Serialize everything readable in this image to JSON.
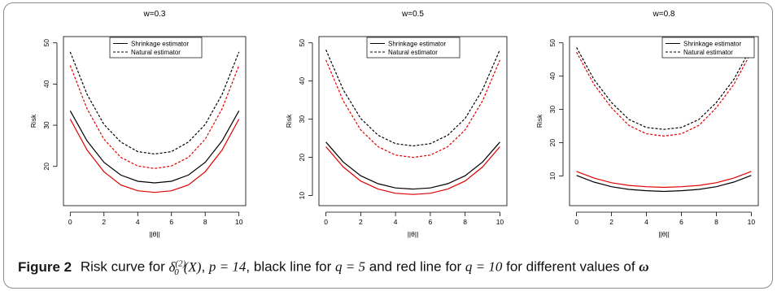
{
  "figure": {
    "caption_label": "Figure 2",
    "caption_text": {
      "risk_curve_for": "Risk curve for",
      "delta": "δ",
      "delta_sup": "(2)",
      "delta_sub": "0",
      "arg": "(X)",
      "p_part": "p = 14",
      "black_line_for": "black line for",
      "q_black": "q = 5",
      "red_line_for": "and red line for",
      "q_red": "q = 10",
      "tail": "for different values of",
      "omega": "ω"
    }
  },
  "colors": {
    "q5": "#000000",
    "q10": "#e00000"
  },
  "chart_data": [
    {
      "type": "line",
      "title": "w=0.3",
      "xlabel": "||θ||",
      "ylabel": "Risk",
      "xlim": [
        0,
        10
      ],
      "ylim": [
        12,
        50
      ],
      "xticks": [
        0,
        2,
        4,
        6,
        8,
        10
      ],
      "yticks": [
        20,
        30,
        40,
        50
      ],
      "legend": [
        "Shrinkage estimator",
        "Natural estimator"
      ],
      "legend_position": "top",
      "series": [
        {
          "name": "Shrinkage estimator",
          "color": "#000000",
          "dash": "solid",
          "x": [
            0,
            1,
            2,
            3,
            4,
            5,
            6,
            7,
            8,
            9,
            10
          ],
          "y": [
            33.5,
            26.2,
            21.0,
            17.9,
            16.4,
            16.0,
            16.4,
            17.9,
            21.0,
            26.2,
            33.5
          ]
        },
        {
          "color": "#e00000",
          "dash": "solid",
          "x": [
            0,
            1,
            2,
            3,
            4,
            5,
            6,
            7,
            8,
            9,
            10
          ],
          "y": [
            31.5,
            24.0,
            18.7,
            15.5,
            14.1,
            13.7,
            14.1,
            15.5,
            18.7,
            24.0,
            31.5
          ]
        },
        {
          "name": "Natural estimator",
          "color": "#000000",
          "dash": "dashed",
          "x": [
            0,
            1,
            2,
            3,
            4,
            5,
            6,
            7,
            8,
            9,
            10
          ],
          "y": [
            47.8,
            37.5,
            30.2,
            25.9,
            23.6,
            23.0,
            23.6,
            25.9,
            30.2,
            37.5,
            47.8
          ]
        },
        {
          "color": "#e00000",
          "dash": "dashed",
          "x": [
            0,
            1,
            2,
            3,
            4,
            5,
            6,
            7,
            8,
            9,
            10
          ],
          "y": [
            44.5,
            34.0,
            26.6,
            22.2,
            20.1,
            19.5,
            20.1,
            22.2,
            26.6,
            34.0,
            44.5
          ]
        }
      ]
    },
    {
      "type": "line",
      "title": "w=0.5",
      "xlabel": "||θ||",
      "ylabel": "Risk",
      "xlim": [
        0,
        10
      ],
      "ylim": [
        9,
        50
      ],
      "xticks": [
        0,
        2,
        4,
        6,
        8,
        10
      ],
      "yticks": [
        10,
        20,
        30,
        40,
        50
      ],
      "legend": [
        "Shrinkage estimator",
        "Natural estimator"
      ],
      "legend_position": "top-right",
      "series": [
        {
          "name": "Shrinkage estimator",
          "color": "#000000",
          "dash": "solid",
          "x": [
            0,
            1,
            2,
            3,
            4,
            5,
            6,
            7,
            8,
            9,
            10
          ],
          "y": [
            24.0,
            18.8,
            15.2,
            13.1,
            12.0,
            11.7,
            12.0,
            13.1,
            15.2,
            18.8,
            24.0
          ]
        },
        {
          "color": "#e00000",
          "dash": "solid",
          "x": [
            0,
            1,
            2,
            3,
            4,
            5,
            6,
            7,
            8,
            9,
            10
          ],
          "y": [
            22.8,
            17.5,
            13.8,
            11.7,
            10.6,
            10.3,
            10.6,
            11.7,
            13.8,
            17.5,
            22.8
          ]
        },
        {
          "name": "Natural estimator",
          "color": "#000000",
          "dash": "dashed",
          "x": [
            0,
            1,
            2,
            3,
            4,
            5,
            6,
            7,
            8,
            9,
            10
          ],
          "y": [
            48.2,
            37.7,
            30.2,
            25.8,
            23.6,
            23.0,
            23.6,
            25.8,
            30.2,
            37.7,
            48.2
          ]
        },
        {
          "color": "#e00000",
          "dash": "dashed",
          "x": [
            0,
            1,
            2,
            3,
            4,
            5,
            6,
            7,
            8,
            9,
            10
          ],
          "y": [
            45.5,
            34.8,
            27.2,
            22.8,
            20.6,
            20.0,
            20.6,
            22.8,
            27.2,
            34.8,
            45.5
          ]
        }
      ]
    },
    {
      "type": "line",
      "title": "w=0.8",
      "xlabel": "||θ||",
      "ylabel": "Risk",
      "xlim": [
        0,
        10
      ],
      "ylim": [
        3,
        50
      ],
      "xticks": [
        0,
        2,
        4,
        6,
        8,
        10
      ],
      "yticks": [
        10,
        20,
        30,
        40,
        50
      ],
      "legend": [
        "Shrinkage estimator",
        "Natural estimator"
      ],
      "legend_position": "top-right",
      "series": [
        {
          "name": "Shrinkage estimator",
          "color": "#000000",
          "dash": "solid",
          "x": [
            0,
            1,
            2,
            3,
            4,
            5,
            6,
            7,
            8,
            9,
            10
          ],
          "y": [
            10.2,
            8.2,
            6.8,
            6.0,
            5.6,
            5.4,
            5.6,
            6.0,
            6.8,
            8.2,
            10.2
          ]
        },
        {
          "color": "#e00000",
          "dash": "solid",
          "x": [
            0,
            1,
            2,
            3,
            4,
            5,
            6,
            7,
            8,
            9,
            10
          ],
          "y": [
            11.4,
            9.4,
            8.0,
            7.2,
            6.8,
            6.6,
            6.8,
            7.2,
            8.0,
            9.4,
            11.4
          ]
        },
        {
          "name": "Natural estimator",
          "color": "#000000",
          "dash": "dashed",
          "x": [
            0,
            1,
            2,
            3,
            4,
            5,
            6,
            7,
            8,
            9,
            10
          ],
          "y": [
            48.6,
            39.0,
            32.1,
            27.0,
            24.6,
            24.0,
            24.6,
            27.0,
            32.1,
            39.0,
            48.6
          ]
        },
        {
          "color": "#e00000",
          "dash": "dashed",
          "x": [
            0,
            1,
            2,
            3,
            4,
            5,
            6,
            7,
            8,
            9,
            10
          ],
          "y": [
            47.2,
            37.5,
            30.5,
            25.2,
            22.7,
            22.0,
            22.7,
            25.2,
            30.5,
            37.5,
            47.2
          ]
        }
      ]
    }
  ]
}
